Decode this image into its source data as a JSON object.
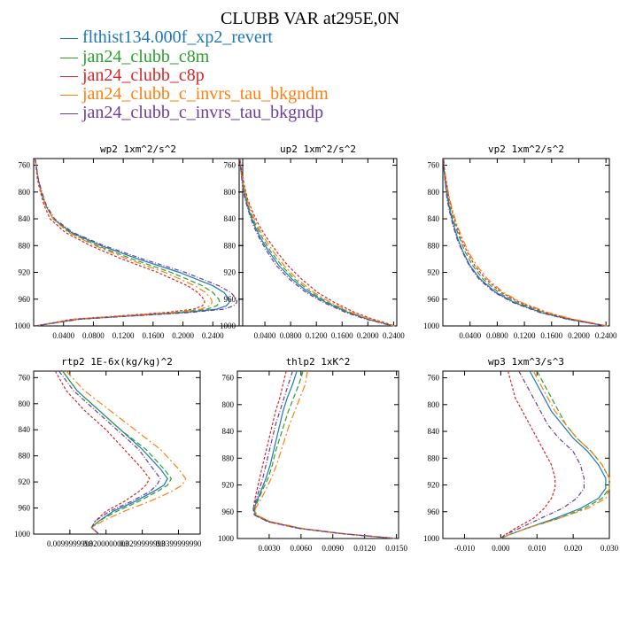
{
  "figure": {
    "title": "CLUBB VAR at295E,0N"
  },
  "legend": [
    {
      "label": "flthist134.000f_xp2_revert",
      "color": "#1f77b4"
    },
    {
      "label": "jan24_clubb_c8m",
      "color": "#2ca02c"
    },
    {
      "label": "jan24_clubb_c8p",
      "color": "#d62728"
    },
    {
      "label": "jan24_clubb_c_invrs_tau_bkgndm",
      "color": "#ff7f0e"
    },
    {
      "label": "jan24_clubb_c_invrs_tau_bkgndp",
      "color": "#6a3d9a"
    }
  ],
  "chart_data": [
    {
      "type": "line",
      "title": "wp2  1xm^2/s^2",
      "ylim": [
        1000,
        750
      ],
      "yticks": [
        "760",
        "800",
        "840",
        "880",
        "920",
        "960",
        "1000"
      ],
      "ytick_values": [
        760,
        800,
        840,
        880,
        920,
        960,
        1000
      ],
      "xlim": [
        0.0,
        0.28
      ],
      "xticks": [
        "0.0400",
        "0.0800",
        "0.1200",
        "0.1600",
        "0.2000",
        "0.2400"
      ],
      "xtick_values": [
        0.04,
        0.08,
        0.12,
        0.16,
        0.2,
        0.24
      ],
      "y": [
        750,
        780,
        800,
        820,
        840,
        860,
        880,
        900,
        920,
        940,
        950,
        960,
        965,
        970,
        975,
        980,
        990,
        1000
      ],
      "series": [
        {
          "values": [
            0.002,
            0.006,
            0.01,
            0.016,
            0.026,
            0.05,
            0.09,
            0.14,
            0.195,
            0.24,
            0.255,
            0.262,
            0.262,
            0.258,
            0.245,
            0.2,
            0.06,
            0.002
          ]
        },
        {
          "values": [
            0.002,
            0.006,
            0.01,
            0.016,
            0.026,
            0.048,
            0.085,
            0.132,
            0.184,
            0.226,
            0.24,
            0.248,
            0.249,
            0.245,
            0.232,
            0.19,
            0.056,
            0.002
          ]
        },
        {
          "values": [
            0.002,
            0.005,
            0.009,
            0.014,
            0.022,
            0.042,
            0.076,
            0.118,
            0.166,
            0.206,
            0.22,
            0.228,
            0.229,
            0.226,
            0.214,
            0.176,
            0.052,
            0.002
          ]
        },
        {
          "values": [
            0.002,
            0.006,
            0.01,
            0.016,
            0.026,
            0.046,
            0.082,
            0.126,
            0.176,
            0.216,
            0.23,
            0.238,
            0.239,
            0.236,
            0.224,
            0.184,
            0.054,
            0.002
          ]
        },
        {
          "values": [
            0.002,
            0.006,
            0.011,
            0.017,
            0.028,
            0.052,
            0.094,
            0.146,
            0.203,
            0.248,
            0.264,
            0.272,
            0.272,
            0.268,
            0.255,
            0.208,
            0.062,
            0.002
          ]
        }
      ]
    },
    {
      "type": "line",
      "title": "up2  1xm^2/s^2",
      "ylim": [
        1000,
        750
      ],
      "yticks": [
        "760",
        "800",
        "840",
        "880",
        "920",
        "960",
        "1000"
      ],
      "ytick_values": [
        760,
        800,
        840,
        880,
        920,
        960,
        1000
      ],
      "xlim": [
        0.0,
        0.245
      ],
      "xticks": [
        "0.0400",
        "0.0800",
        "0.1200",
        "0.1600",
        "0.2000",
        "0.2400"
      ],
      "xtick_values": [
        0.04,
        0.08,
        0.12,
        0.16,
        0.2,
        0.24
      ],
      "y": [
        750,
        770,
        790,
        810,
        830,
        850,
        870,
        890,
        910,
        930,
        950,
        965,
        980,
        990,
        995,
        1000
      ],
      "series": [
        {
          "values": [
            0.001,
            0.003,
            0.006,
            0.01,
            0.016,
            0.024,
            0.034,
            0.047,
            0.062,
            0.082,
            0.108,
            0.135,
            0.17,
            0.2,
            0.22,
            0.24
          ]
        },
        {
          "values": [
            0.001,
            0.003,
            0.006,
            0.011,
            0.017,
            0.026,
            0.037,
            0.05,
            0.066,
            0.086,
            0.112,
            0.138,
            0.172,
            0.202,
            0.222,
            0.24
          ]
        },
        {
          "values": [
            0.001,
            0.004,
            0.008,
            0.013,
            0.021,
            0.031,
            0.044,
            0.059,
            0.076,
            0.097,
            0.122,
            0.148,
            0.18,
            0.208,
            0.226,
            0.242
          ]
        },
        {
          "values": [
            0.001,
            0.003,
            0.007,
            0.012,
            0.019,
            0.028,
            0.04,
            0.054,
            0.07,
            0.09,
            0.116,
            0.142,
            0.175,
            0.204,
            0.223,
            0.241
          ]
        },
        {
          "values": [
            0.001,
            0.003,
            0.005,
            0.009,
            0.015,
            0.022,
            0.032,
            0.044,
            0.058,
            0.078,
            0.104,
            0.131,
            0.166,
            0.197,
            0.218,
            0.239
          ]
        }
      ]
    },
    {
      "type": "line",
      "title": "vp2  1xm^2/s^2",
      "ylim": [
        1000,
        750
      ],
      "yticks": [
        "760",
        "800",
        "840",
        "880",
        "920",
        "960",
        "1000"
      ],
      "ytick_values": [
        760,
        800,
        840,
        880,
        920,
        960,
        1000
      ],
      "xlim": [
        0.0,
        0.245
      ],
      "xticks": [
        "0.0400",
        "0.0800",
        "0.1200",
        "0.1600",
        "0.2000",
        "0.2400"
      ],
      "xtick_values": [
        0.04,
        0.08,
        0.12,
        0.16,
        0.2,
        0.24
      ],
      "y": [
        750,
        770,
        790,
        810,
        830,
        850,
        870,
        890,
        910,
        930,
        950,
        965,
        980,
        990,
        995,
        1000
      ],
      "series": [
        {
          "values": [
            0.001,
            0.002,
            0.004,
            0.007,
            0.011,
            0.016,
            0.022,
            0.03,
            0.04,
            0.055,
            0.078,
            0.105,
            0.145,
            0.185,
            0.212,
            0.24
          ]
        },
        {
          "values": [
            0.001,
            0.002,
            0.005,
            0.008,
            0.012,
            0.018,
            0.025,
            0.033,
            0.044,
            0.059,
            0.082,
            0.109,
            0.148,
            0.187,
            0.214,
            0.24
          ]
        },
        {
          "values": [
            0.001,
            0.003,
            0.006,
            0.009,
            0.014,
            0.02,
            0.027,
            0.036,
            0.047,
            0.063,
            0.086,
            0.113,
            0.152,
            0.19,
            0.216,
            0.241
          ]
        },
        {
          "values": [
            0.001,
            0.003,
            0.006,
            0.01,
            0.015,
            0.021,
            0.029,
            0.038,
            0.05,
            0.066,
            0.089,
            0.116,
            0.155,
            0.192,
            0.218,
            0.242
          ]
        },
        {
          "values": [
            0.001,
            0.002,
            0.004,
            0.006,
            0.01,
            0.015,
            0.021,
            0.029,
            0.039,
            0.053,
            0.076,
            0.103,
            0.143,
            0.183,
            0.211,
            0.239
          ]
        }
      ]
    },
    {
      "type": "line",
      "title": "rtp2  1E-6x(kg/kg)^2",
      "ylim": [
        1000,
        750
      ],
      "yticks": [
        "760",
        "800",
        "840",
        "880",
        "920",
        "960",
        "1000"
      ],
      "ytick_values": [
        760,
        800,
        840,
        880,
        920,
        960,
        1000
      ],
      "xlim": [
        0.0,
        0.046
      ],
      "xticks": [
        "0.0099999998",
        "0.0200000003",
        "0.0299999993",
        "0.0399999990"
      ],
      "xtick_values": [
        0.01,
        0.02,
        0.03,
        0.04
      ],
      "y": [
        750,
        780,
        810,
        840,
        870,
        900,
        915,
        925,
        935,
        950,
        965,
        980,
        990,
        1000
      ],
      "series": [
        {
          "values": [
            0.008,
            0.012,
            0.018,
            0.024,
            0.03,
            0.035,
            0.037,
            0.036,
            0.033,
            0.028,
            0.022,
            0.018,
            0.016,
            0.018
          ]
        },
        {
          "values": [
            0.008,
            0.012,
            0.018,
            0.024,
            0.031,
            0.036,
            0.038,
            0.037,
            0.034,
            0.029,
            0.023,
            0.018,
            0.016,
            0.018
          ]
        },
        {
          "values": [
            0.006,
            0.009,
            0.014,
            0.02,
            0.025,
            0.03,
            0.032,
            0.031,
            0.029,
            0.025,
            0.02,
            0.017,
            0.016,
            0.018
          ]
        },
        {
          "values": [
            0.009,
            0.014,
            0.021,
            0.028,
            0.035,
            0.04,
            0.042,
            0.041,
            0.038,
            0.032,
            0.025,
            0.019,
            0.016,
            0.018
          ]
        },
        {
          "values": [
            0.007,
            0.011,
            0.017,
            0.023,
            0.029,
            0.033,
            0.035,
            0.034,
            0.032,
            0.027,
            0.021,
            0.017,
            0.016,
            0.018
          ]
        }
      ]
    },
    {
      "type": "line",
      "title": "thlp2  1xK^2",
      "ylim": [
        1000,
        750
      ],
      "yticks": [
        "760",
        "800",
        "840",
        "880",
        "920",
        "960",
        "1000"
      ],
      "ytick_values": [
        760,
        800,
        840,
        880,
        920,
        960,
        1000
      ],
      "xlim": [
        0.0,
        0.0152
      ],
      "xticks": [
        "0.0030",
        "0.0060",
        "0.0090",
        "0.0120",
        "0.0150"
      ],
      "xtick_values": [
        0.003,
        0.006,
        0.009,
        0.012,
        0.015
      ],
      "y": [
        750,
        770,
        790,
        810,
        830,
        850,
        870,
        890,
        910,
        930,
        945,
        955,
        965,
        975,
        985,
        993,
        1000
      ],
      "series": [
        {
          "values": [
            0.0056,
            0.0052,
            0.0047,
            0.0043,
            0.004,
            0.0037,
            0.0034,
            0.0031,
            0.0027,
            0.0022,
            0.0018,
            0.0016,
            0.0017,
            0.003,
            0.006,
            0.01,
            0.015
          ]
        },
        {
          "values": [
            0.0062,
            0.0058,
            0.0053,
            0.0048,
            0.0044,
            0.004,
            0.0036,
            0.0033,
            0.0029,
            0.0023,
            0.0019,
            0.0016,
            0.0017,
            0.0031,
            0.0061,
            0.0101,
            0.015
          ]
        },
        {
          "values": [
            0.0046,
            0.0043,
            0.004,
            0.0036,
            0.0033,
            0.003,
            0.0027,
            0.0024,
            0.0021,
            0.0018,
            0.0016,
            0.0015,
            0.0016,
            0.0029,
            0.0058,
            0.0099,
            0.015
          ]
        },
        {
          "values": [
            0.0066,
            0.0064,
            0.0059,
            0.0054,
            0.0049,
            0.0045,
            0.0041,
            0.0037,
            0.0032,
            0.0026,
            0.0021,
            0.0017,
            0.0018,
            0.0032,
            0.0062,
            0.0102,
            0.015
          ]
        },
        {
          "values": [
            0.0052,
            0.0048,
            0.0044,
            0.004,
            0.0036,
            0.0033,
            0.003,
            0.0027,
            0.0024,
            0.002,
            0.0017,
            0.0015,
            0.0016,
            0.0029,
            0.0059,
            0.01,
            0.015
          ]
        }
      ]
    },
    {
      "type": "line",
      "title": "wp3  1xm^3/s^3",
      "ylim": [
        1000,
        750
      ],
      "yticks": [
        "760",
        "800",
        "840",
        "880",
        "920",
        "960",
        "1000"
      ],
      "ytick_values": [
        760,
        800,
        840,
        880,
        920,
        960,
        1000
      ],
      "xlim": [
        -0.016,
        0.03
      ],
      "xticks": [
        "-0.010",
        "0.000",
        "0.010",
        "0.020",
        "0.030"
      ],
      "xtick_values": [
        -0.01,
        0.0,
        0.01,
        0.02,
        0.03
      ],
      "y": [
        750,
        770,
        790,
        810,
        830,
        850,
        870,
        890,
        910,
        925,
        940,
        955,
        970,
        985,
        995,
        1000
      ],
      "series": [
        {
          "values": [
            0.008,
            0.01,
            0.012,
            0.014,
            0.017,
            0.02,
            0.024,
            0.027,
            0.029,
            0.029,
            0.027,
            0.022,
            0.015,
            0.007,
            0.002,
            0.0
          ]
        },
        {
          "values": [
            0.01,
            0.012,
            0.014,
            0.016,
            0.018,
            0.021,
            0.025,
            0.028,
            0.03,
            0.03,
            0.028,
            0.023,
            0.016,
            0.007,
            0.002,
            0.0
          ]
        },
        {
          "values": [
            0.002,
            0.003,
            0.004,
            0.006,
            0.008,
            0.01,
            0.012,
            0.014,
            0.015,
            0.015,
            0.014,
            0.012,
            0.009,
            0.004,
            0.001,
            0.0
          ]
        },
        {
          "values": [
            0.009,
            0.011,
            0.013,
            0.015,
            0.018,
            0.021,
            0.025,
            0.028,
            0.03,
            0.03,
            0.029,
            0.024,
            0.016,
            0.007,
            0.002,
            0.0
          ]
        },
        {
          "values": [
            0.005,
            0.007,
            0.009,
            0.011,
            0.013,
            0.016,
            0.02,
            0.022,
            0.023,
            0.023,
            0.021,
            0.017,
            0.011,
            0.005,
            0.001,
            0.0
          ]
        }
      ]
    }
  ]
}
